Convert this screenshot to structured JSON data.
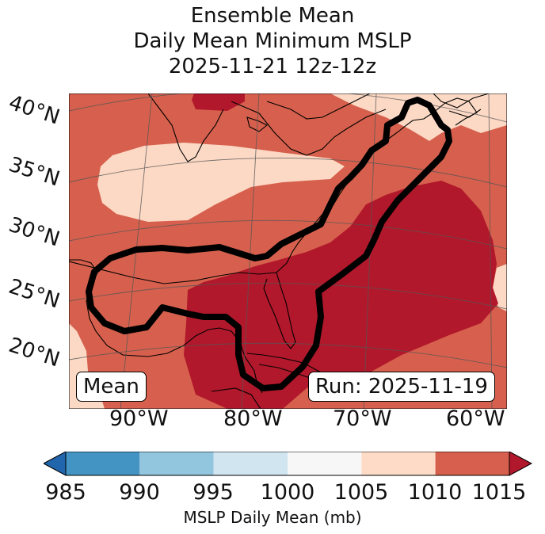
{
  "title": {
    "line1": "Ensemble Mean",
    "line2": "Daily Mean Minimum MSLP",
    "line3": "2025-11-21 12z-12z"
  },
  "map": {
    "lat_labels": [
      "40°N",
      "35°N",
      "30°N",
      "25°N",
      "20°N"
    ],
    "lon_labels": [
      "90°W",
      "80°W",
      "70°W",
      "60°W"
    ],
    "mean_box": "Mean",
    "run_box": "Run: 2025-11-19",
    "field_colors": {
      "1005-1010": "#fcd9c5",
      "1010-1015": "#d6604d",
      "1015+": "#b2182b"
    },
    "contour_color": "#000000",
    "coastline_color": "#000000",
    "gridline_color": "#555555"
  },
  "colorbar": {
    "label": "MSLP Daily Mean (mb)",
    "ticks": [
      "985",
      "990",
      "995",
      "1000",
      "1005",
      "1010",
      "1015"
    ],
    "colors": [
      "#2166ac",
      "#4393c3",
      "#92c5de",
      "#d1e5f0",
      "#f7f7f7",
      "#fddbc7",
      "#d6604d",
      "#b2182b"
    ],
    "extend": "both"
  }
}
